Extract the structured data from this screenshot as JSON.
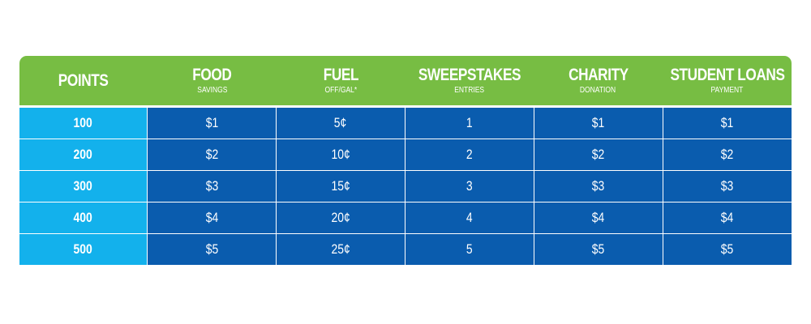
{
  "header": {
    "columns": [
      {
        "title": "POINTS",
        "subtitle": ""
      },
      {
        "title": "FOOD",
        "subtitle": "SAVINGS"
      },
      {
        "title": "FUEL",
        "subtitle": "OFF/GAL*"
      },
      {
        "title": "SWEEPSTAKES",
        "subtitle": "ENTRIES"
      },
      {
        "title": "CHARITY",
        "subtitle": "DONATION"
      },
      {
        "title": "STUDENT LOANS",
        "subtitle": "PAYMENT"
      }
    ]
  },
  "rows": [
    [
      "100",
      "$1",
      "5¢",
      "1",
      "$1",
      "$1"
    ],
    [
      "200",
      "$2",
      "10¢",
      "2",
      "$2",
      "$2"
    ],
    [
      "300",
      "$3",
      "15¢",
      "3",
      "$3",
      "$3"
    ],
    [
      "400",
      "$4",
      "20¢",
      "4",
      "$4",
      "$4"
    ],
    [
      "500",
      "$5",
      "25¢",
      "5",
      "$5",
      "$5"
    ]
  ],
  "colors": {
    "header_bg": "#77bd43",
    "points_bg": "#13b1ec",
    "value_bg": "#0a5cae",
    "text": "#ffffff"
  }
}
